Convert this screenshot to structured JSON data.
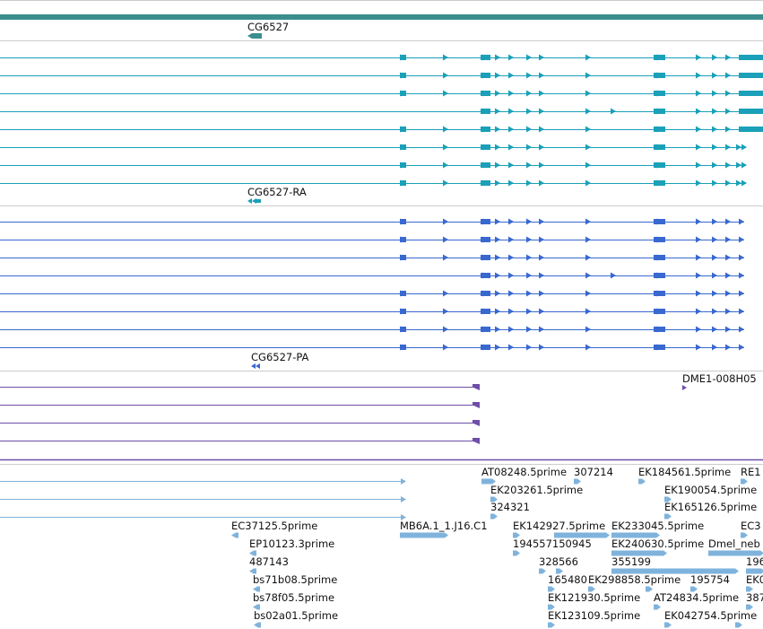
{
  "colors": {
    "gene": "#3a8e8e",
    "mrna": "#1aa0b8",
    "protein": "#3868d0",
    "purple": "#6e4ea8",
    "est": "#7fb3dc",
    "divider": "#cccccc"
  },
  "gene_track": {
    "label": "CG6527",
    "icon": "gene-arrow-icon"
  },
  "mrna_track": {
    "label": "CG6527-RA",
    "icon": "mrna-arrow-icon"
  },
  "protein_track": {
    "label": "CG6527-PA",
    "icon": "protein-arrow-icon"
  },
  "purple_track": {
    "label": "DME1-008H05"
  },
  "est_labels": [
    "AT08248.5prime",
    "307214",
    "EK184561.5prime",
    "RE1",
    "EK203261.5prime",
    "EK190054.5prime",
    "324321",
    "EK165126.5prime",
    "EC37125.5prime",
    "MB6A.1_1.J16.C1",
    "EK142927.5prime",
    "EK233045.5prime",
    "EC3",
    "EP10123.3prime",
    "194557150945",
    "EK240630.5prime",
    "Dmel_neb",
    "487143",
    "328566",
    "355199",
    "196",
    "bs71b08.5prime",
    "165480",
    "EK298858.5prime",
    "195754",
    "EK0",
    "bs78f05.5prime",
    "EK121930.5prime",
    "AT24834.5prime",
    "387",
    "bs02a01.5prime",
    "EK123109.5prime",
    "EK042754.5prime"
  ]
}
